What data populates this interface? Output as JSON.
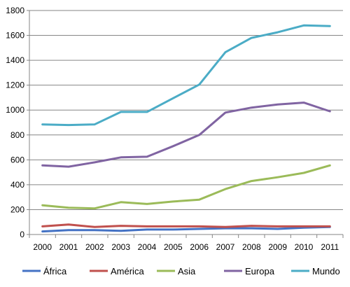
{
  "chart_data": {
    "type": "line",
    "title": "",
    "xlabel": "",
    "ylabel": "",
    "categories": [
      "2000",
      "2001",
      "2002",
      "2003",
      "2004",
      "2005",
      "2006",
      "2007",
      "2008",
      "2009",
      "2010",
      "2011"
    ],
    "ylim": [
      0,
      1800
    ],
    "yticks": [
      0,
      200,
      400,
      600,
      800,
      1000,
      1200,
      1400,
      1600,
      1800
    ],
    "grid": true,
    "legend_position": "bottom",
    "series": [
      {
        "name": "África",
        "color": "#4472C4",
        "values": [
          25,
          35,
          35,
          30,
          40,
          40,
          45,
          50,
          50,
          45,
          55,
          60
        ]
      },
      {
        "name": "América",
        "color": "#C0504D",
        "values": [
          65,
          80,
          60,
          70,
          65,
          65,
          65,
          60,
          70,
          65,
          65,
          65
        ]
      },
      {
        "name": "Asia",
        "color": "#9BBB59",
        "values": [
          235,
          215,
          210,
          260,
          245,
          265,
          280,
          365,
          430,
          460,
          495,
          555
        ]
      },
      {
        "name": "Europa",
        "color": "#8064A2",
        "values": [
          555,
          545,
          580,
          620,
          625,
          710,
          800,
          980,
          1020,
          1045,
          1060,
          990
        ]
      },
      {
        "name": "Mundo",
        "color": "#4BACC6",
        "values": [
          885,
          880,
          885,
          985,
          985,
          1095,
          1205,
          1465,
          1580,
          1625,
          1680,
          1675
        ]
      }
    ]
  }
}
